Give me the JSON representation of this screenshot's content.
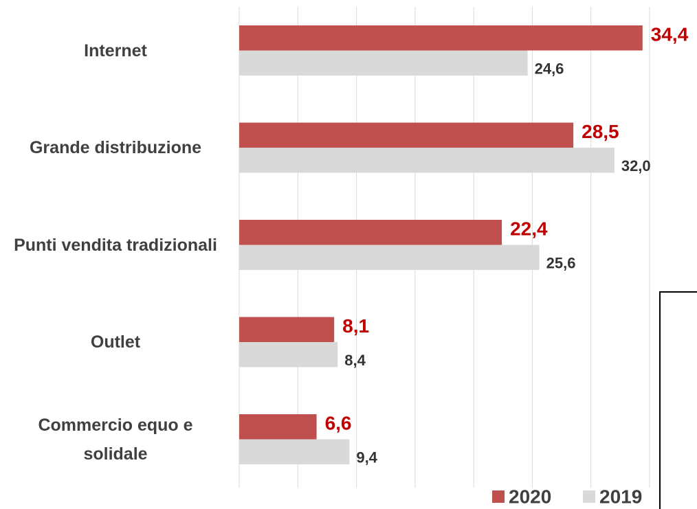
{
  "chart_data": {
    "type": "bar",
    "orientation": "horizontal",
    "categories": [
      "Internet",
      "Grande distribuzione",
      "Punti vendita tradizionali",
      "Outlet",
      "Commercio equo e solidale"
    ],
    "series": [
      {
        "name": "2020",
        "color": "#c0504d",
        "label_color": "#c00000",
        "values": [
          34.4,
          28.5,
          22.4,
          8.1,
          6.6
        ],
        "value_labels": [
          "34,4",
          "28,5",
          "22,4",
          "8,1",
          "6,6"
        ]
      },
      {
        "name": "2019",
        "color": "#d9d9d9",
        "label_color": "#333333",
        "values": [
          24.6,
          32.0,
          25.6,
          8.4,
          9.4
        ],
        "value_labels": [
          "24,6",
          "32,0",
          "25,6",
          "8,4",
          "9,4"
        ]
      }
    ],
    "xlim": [
      0,
      35
    ],
    "xticks": [
      0,
      5,
      10,
      15,
      20,
      25,
      30,
      35
    ],
    "grid": true,
    "legend": "bottom-right"
  }
}
